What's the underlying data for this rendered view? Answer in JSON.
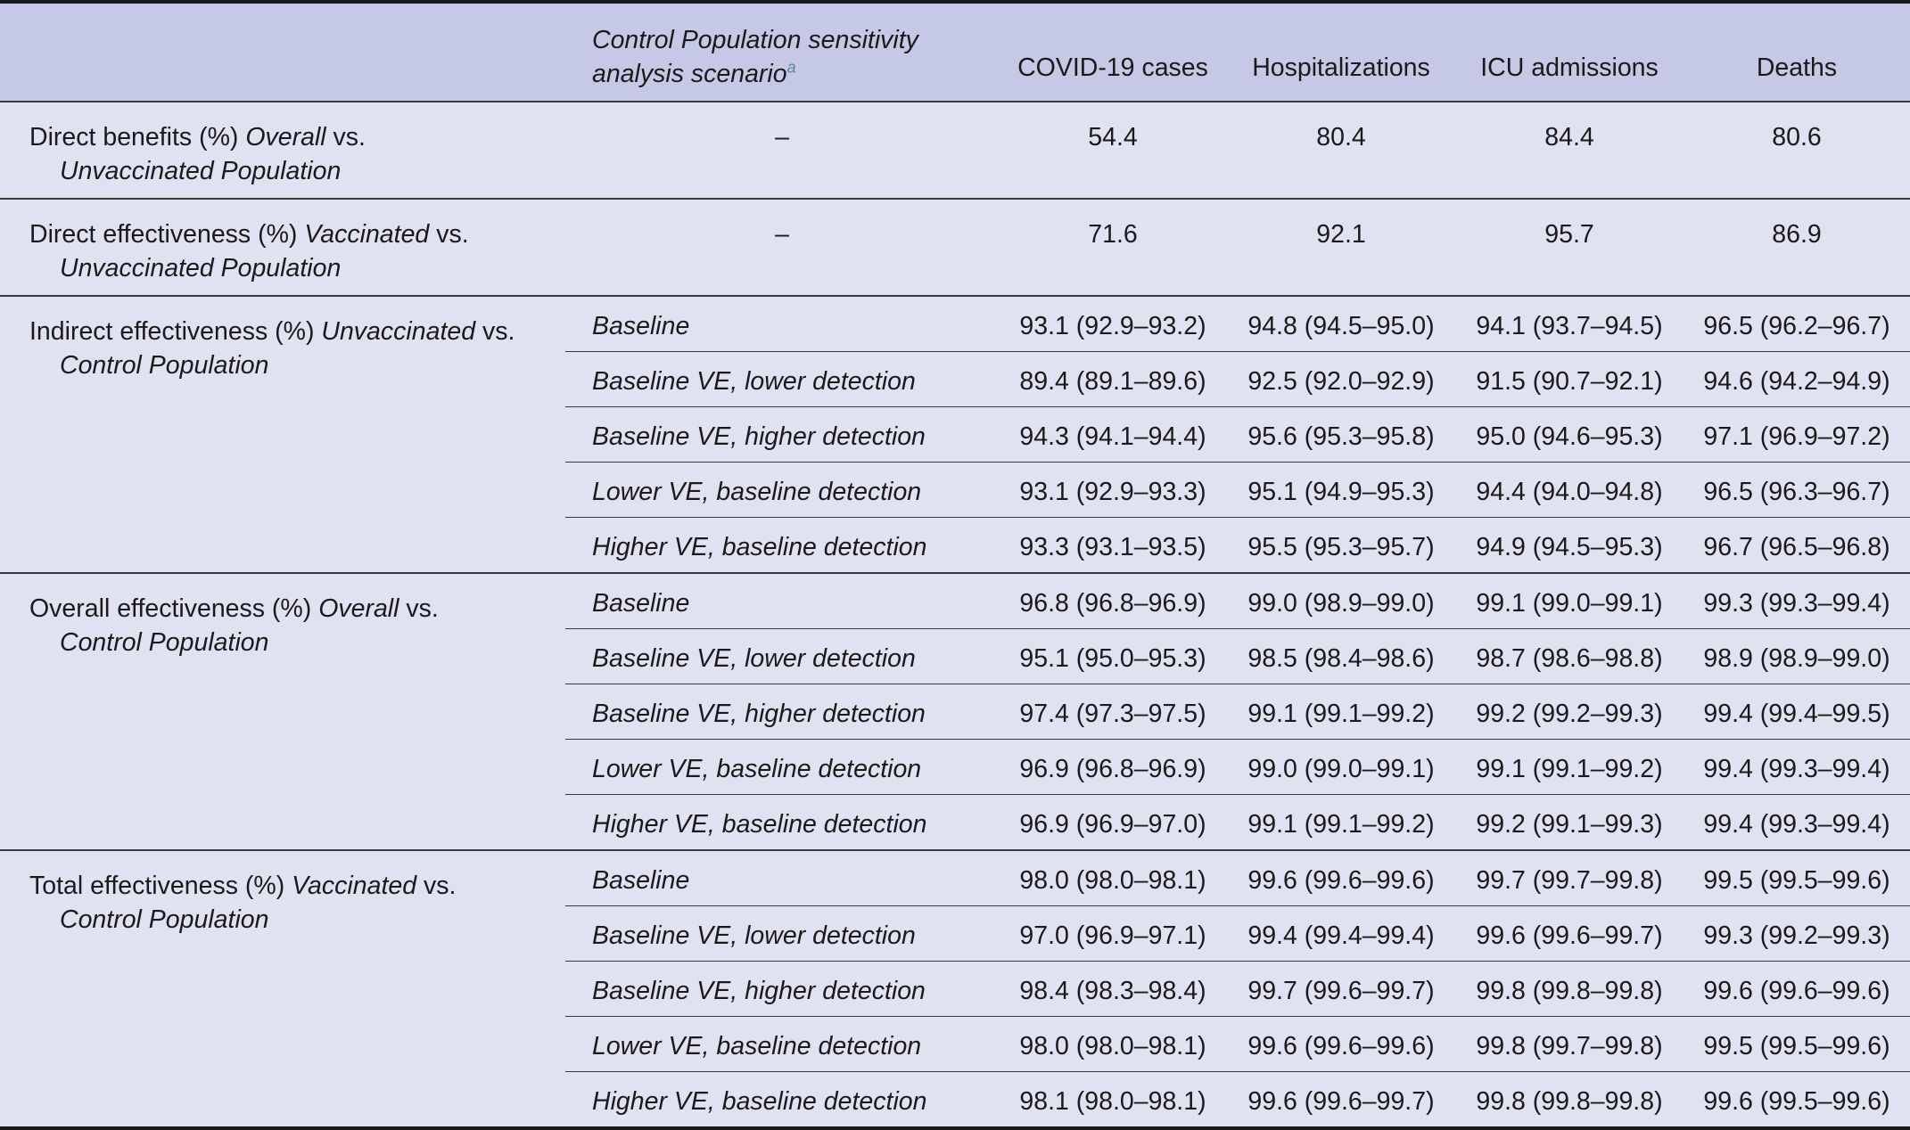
{
  "header": {
    "col0": "",
    "col1": "Control Population sensitivity analysis scenario",
    "col1_footnote": "a",
    "col2": "COVID-19 cases",
    "col3": "Hospitalizations",
    "col4": "ICU admissions",
    "col5": "Deaths"
  },
  "groups": [
    {
      "label_prefix": "Direct benefits (%) ",
      "label_em1": "Overall",
      "label_vs": " vs.",
      "label_em2": "Unvaccinated Population",
      "rows": [
        {
          "scenario": "–",
          "cases": "54.4",
          "hosp": "80.4",
          "icu": "84.4",
          "deaths": "80.6"
        }
      ]
    },
    {
      "label_prefix": "Direct effectiveness (%) ",
      "label_em1": "Vaccinated",
      "label_vs": " vs.",
      "label_em2": "Unvaccinated Population",
      "rows": [
        {
          "scenario": "–",
          "cases": "71.6",
          "hosp": "92.1",
          "icu": "95.7",
          "deaths": "86.9"
        }
      ]
    },
    {
      "label_prefix": "Indirect effectiveness (%) ",
      "label_em1": "Unvaccinated",
      "label_vs": " vs.",
      "label_em2": "Control Population",
      "rows": [
        {
          "scenario": "Baseline",
          "cases": "93.1 (92.9–93.2)",
          "hosp": "94.8 (94.5–95.0)",
          "icu": "94.1 (93.7–94.5)",
          "deaths": "96.5 (96.2–96.7)"
        },
        {
          "scenario": "Baseline VE, lower detection",
          "cases": "89.4 (89.1–89.6)",
          "hosp": "92.5 (92.0–92.9)",
          "icu": "91.5 (90.7–92.1)",
          "deaths": "94.6 (94.2–94.9)"
        },
        {
          "scenario": "Baseline VE, higher detection",
          "cases": "94.3 (94.1–94.4)",
          "hosp": "95.6 (95.3–95.8)",
          "icu": "95.0 (94.6–95.3)",
          "deaths": "97.1 (96.9–97.2)"
        },
        {
          "scenario": "Lower VE, baseline detection",
          "cases": "93.1 (92.9–93.3)",
          "hosp": "95.1 (94.9–95.3)",
          "icu": "94.4 (94.0–94.8)",
          "deaths": "96.5 (96.3–96.7)"
        },
        {
          "scenario": "Higher VE, baseline detection",
          "cases": "93.3 (93.1–93.5)",
          "hosp": "95.5 (95.3–95.7)",
          "icu": "94.9 (94.5–95.3)",
          "deaths": "96.7 (96.5–96.8)"
        }
      ]
    },
    {
      "label_prefix": "Overall effectiveness (%) ",
      "label_em1": "Overall",
      "label_vs": " vs.",
      "label_em2": "Control Population",
      "rows": [
        {
          "scenario": "Baseline",
          "cases": "96.8 (96.8–96.9)",
          "hosp": "99.0 (98.9–99.0)",
          "icu": "99.1 (99.0–99.1)",
          "deaths": "99.3 (99.3–99.4)"
        },
        {
          "scenario": "Baseline VE, lower detection",
          "cases": "95.1 (95.0–95.3)",
          "hosp": "98.5 (98.4–98.6)",
          "icu": "98.7 (98.6–98.8)",
          "deaths": "98.9 (98.9–99.0)"
        },
        {
          "scenario": "Baseline VE, higher detection",
          "cases": "97.4 (97.3–97.5)",
          "hosp": "99.1 (99.1–99.2)",
          "icu": "99.2 (99.2–99.3)",
          "deaths": "99.4 (99.4–99.5)"
        },
        {
          "scenario": "Lower VE, baseline detection",
          "cases": "96.9 (96.8–96.9)",
          "hosp": "99.0 (99.0–99.1)",
          "icu": "99.1 (99.1–99.2)",
          "deaths": "99.4 (99.3–99.4)"
        },
        {
          "scenario": "Higher VE, baseline detection",
          "cases": "96.9 (96.9–97.0)",
          "hosp": "99.1 (99.1–99.2)",
          "icu": "99.2 (99.1–99.3)",
          "deaths": "99.4 (99.3–99.4)"
        }
      ]
    },
    {
      "label_prefix": "Total effectiveness (%) ",
      "label_em1": "Vaccinated",
      "label_vs": " vs.",
      "label_em2": "Control Population",
      "rows": [
        {
          "scenario": "Baseline",
          "cases": "98.0 (98.0–98.1)",
          "hosp": "99.6 (99.6–99.6)",
          "icu": "99.7 (99.7–99.8)",
          "deaths": "99.5 (99.5–99.6)"
        },
        {
          "scenario": "Baseline VE, lower detection",
          "cases": "97.0 (96.9–97.1)",
          "hosp": "99.4 (99.4–99.4)",
          "icu": "99.6 (99.6–99.7)",
          "deaths": "99.3 (99.2–99.3)"
        },
        {
          "scenario": "Baseline VE, higher detection",
          "cases": "98.4 (98.3–98.4)",
          "hosp": "99.7 (99.6–99.7)",
          "icu": "99.8 (99.8–99.8)",
          "deaths": "99.6 (99.6–99.6)"
        },
        {
          "scenario": "Lower VE, baseline detection",
          "cases": "98.0 (98.0–98.1)",
          "hosp": "99.6 (99.6–99.6)",
          "icu": "99.8 (99.7–99.8)",
          "deaths": "99.5 (99.5–99.6)"
        },
        {
          "scenario": "Higher VE, baseline detection",
          "cases": "98.1 (98.0–98.1)",
          "hosp": "99.6 (99.6–99.7)",
          "icu": "99.8 (99.8–99.8)",
          "deaths": "99.6 (99.5–99.6)"
        }
      ]
    }
  ]
}
